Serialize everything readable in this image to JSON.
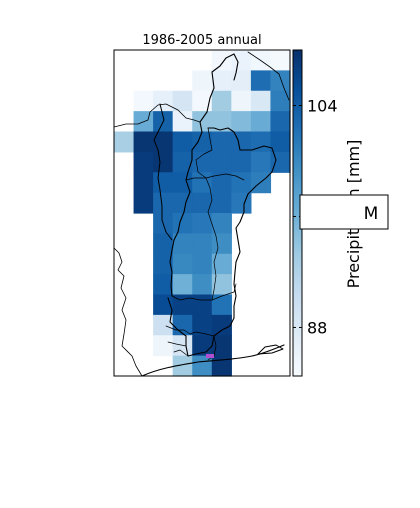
{
  "chart_data": {
    "type": "heatmap",
    "title": "1986-2005 annual",
    "colorbar": {
      "label": "Precipitation [mm]",
      "range": [
        84.5,
        108
      ],
      "ticks": [
        88,
        96,
        104
      ],
      "tick_labels": [
        "88",
        "96",
        "104"
      ],
      "colormap": [
        "#f7fbff",
        "#deebf7",
        "#c6dbef",
        "#9ecae1",
        "#6baed6",
        "#4292c6",
        "#2171b5",
        "#08519c",
        "#08306b"
      ]
    },
    "annotation": "M",
    "marker_color": "#b04fcf",
    "grid_values": [
      [
        null,
        null,
        null,
        null,
        null,
        85.2,
        86.0,
        85.3,
        84.8
      ],
      [
        null,
        null,
        null,
        null,
        85.5,
        86.5,
        86.8,
        102.5,
        100.5
      ],
      [
        null,
        85.0,
        86.5,
        88.5,
        85.0,
        93.0,
        85.5,
        88.0,
        101.0
      ],
      [
        null,
        96.5,
        103.5,
        86.0,
        94.0,
        94.0,
        95.0,
        96.5,
        103.0
      ],
      [
        92.5,
        107.5,
        107.5,
        104.0,
        103.5,
        103.0,
        103.0,
        102.5,
        104.0
      ],
      [
        null,
        107.0,
        107.5,
        103.5,
        103.0,
        103.0,
        103.0,
        101.5,
        103.0
      ],
      [
        null,
        107.0,
        104.0,
        104.0,
        102.0,
        103.0,
        102.0,
        101.0,
        null
      ],
      [
        null,
        107.0,
        103.0,
        103.0,
        103.0,
        103.0,
        101.5,
        null,
        null
      ],
      [
        null,
        null,
        103.0,
        102.0,
        101.5,
        100.5,
        null,
        null,
        null
      ],
      [
        null,
        null,
        103.5,
        100.5,
        100.5,
        99.5,
        null,
        null,
        null
      ],
      [
        null,
        null,
        103.5,
        100.0,
        100.5,
        96.5,
        null,
        null,
        null
      ],
      [
        null,
        null,
        104.0,
        96.0,
        99.5,
        94.0,
        null,
        null,
        null
      ],
      [
        null,
        null,
        105.5,
        106.5,
        106.5,
        102.0,
        null,
        null,
        null
      ],
      [
        null,
        null,
        89.5,
        103.0,
        106.5,
        107.0,
        null,
        null,
        null
      ],
      [
        null,
        null,
        85.5,
        88.5,
        107.0,
        107.5,
        null,
        null,
        null
      ],
      [
        null,
        null,
        null,
        93.0,
        99.5,
        107.5,
        null,
        null,
        null
      ]
    ]
  }
}
